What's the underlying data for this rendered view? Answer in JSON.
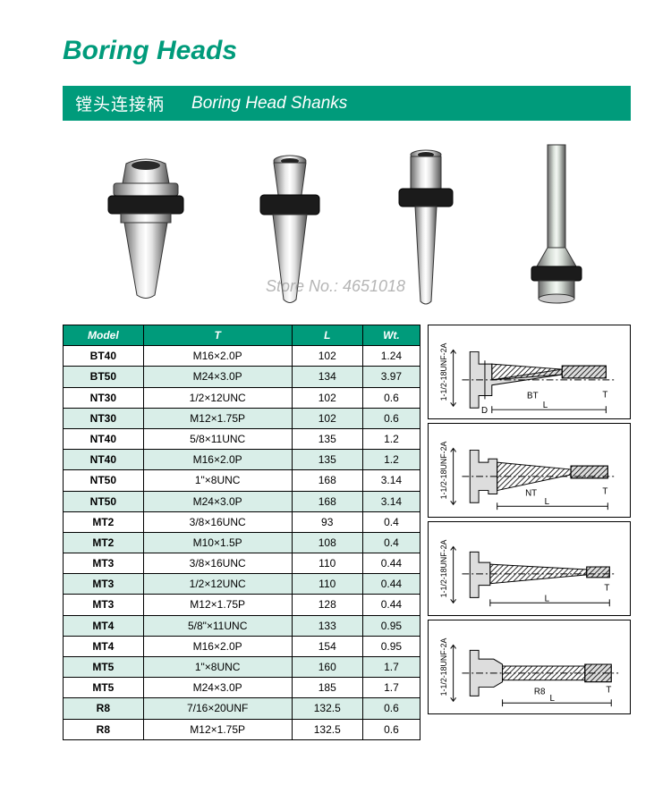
{
  "title": "Boring Heads",
  "subtitle": {
    "zh": "镗头连接柄",
    "en": "Boring Head Shanks"
  },
  "watermark": "Store No.: 4651018",
  "table": {
    "columns": [
      "Model",
      "T",
      "L",
      "Wt."
    ],
    "rows": [
      [
        "BT40",
        "M16×2.0P",
        "102",
        "1.24"
      ],
      [
        "BT50",
        "M24×3.0P",
        "134",
        "3.97"
      ],
      [
        "NT30",
        "1/2×12UNC",
        "102",
        "0.6"
      ],
      [
        "NT30",
        "M12×1.75P",
        "102",
        "0.6"
      ],
      [
        "NT40",
        "5/8×11UNC",
        "135",
        "1.2"
      ],
      [
        "NT40",
        "M16×2.0P",
        "135",
        "1.2"
      ],
      [
        "NT50",
        "1\"×8UNC",
        "168",
        "3.14"
      ],
      [
        "NT50",
        "M24×3.0P",
        "168",
        "3.14"
      ],
      [
        "MT2",
        "3/8×16UNC",
        "93",
        "0.4"
      ],
      [
        "MT2",
        "M10×1.5P",
        "108",
        "0.4"
      ],
      [
        "MT3",
        "3/8×16UNC",
        "110",
        "0.44"
      ],
      [
        "MT3",
        "1/2×12UNC",
        "110",
        "0.44"
      ],
      [
        "MT3",
        "M12×1.75P",
        "128",
        "0.44"
      ],
      [
        "MT4",
        "5/8\"×11UNC",
        "133",
        "0.95"
      ],
      [
        "MT4",
        "M16×2.0P",
        "154",
        "0.95"
      ],
      [
        "MT5",
        "1\"×8UNC",
        "160",
        "1.7"
      ],
      [
        "MT5",
        "M24×3.0P",
        "185",
        "1.7"
      ],
      [
        "R8",
        "7/16×20UNF",
        "132.5",
        "0.6"
      ],
      [
        "R8",
        "M12×1.75P",
        "132.5",
        "0.6"
      ]
    ]
  },
  "diagrams": [
    {
      "left_label": "1-1/2-18UNF-2A",
      "dims": [
        "D",
        "L"
      ],
      "tag": "BT",
      "right": "T"
    },
    {
      "left_label": "1-1/2-18UNF-2A",
      "dims": [
        "L"
      ],
      "tag": "NT",
      "right": "T"
    },
    {
      "left_label": "1-1/2-18UNF-2A",
      "dims": [
        "L"
      ],
      "tag": "",
      "right": "T"
    },
    {
      "left_label": "1-1/2-18UNF-2A",
      "dims": [
        "L"
      ],
      "tag": "R8",
      "right": "T"
    }
  ],
  "colors": {
    "brand": "#009b7b",
    "alt_row": "#d9eee8",
    "text": "#000000",
    "bg": "#ffffff"
  }
}
